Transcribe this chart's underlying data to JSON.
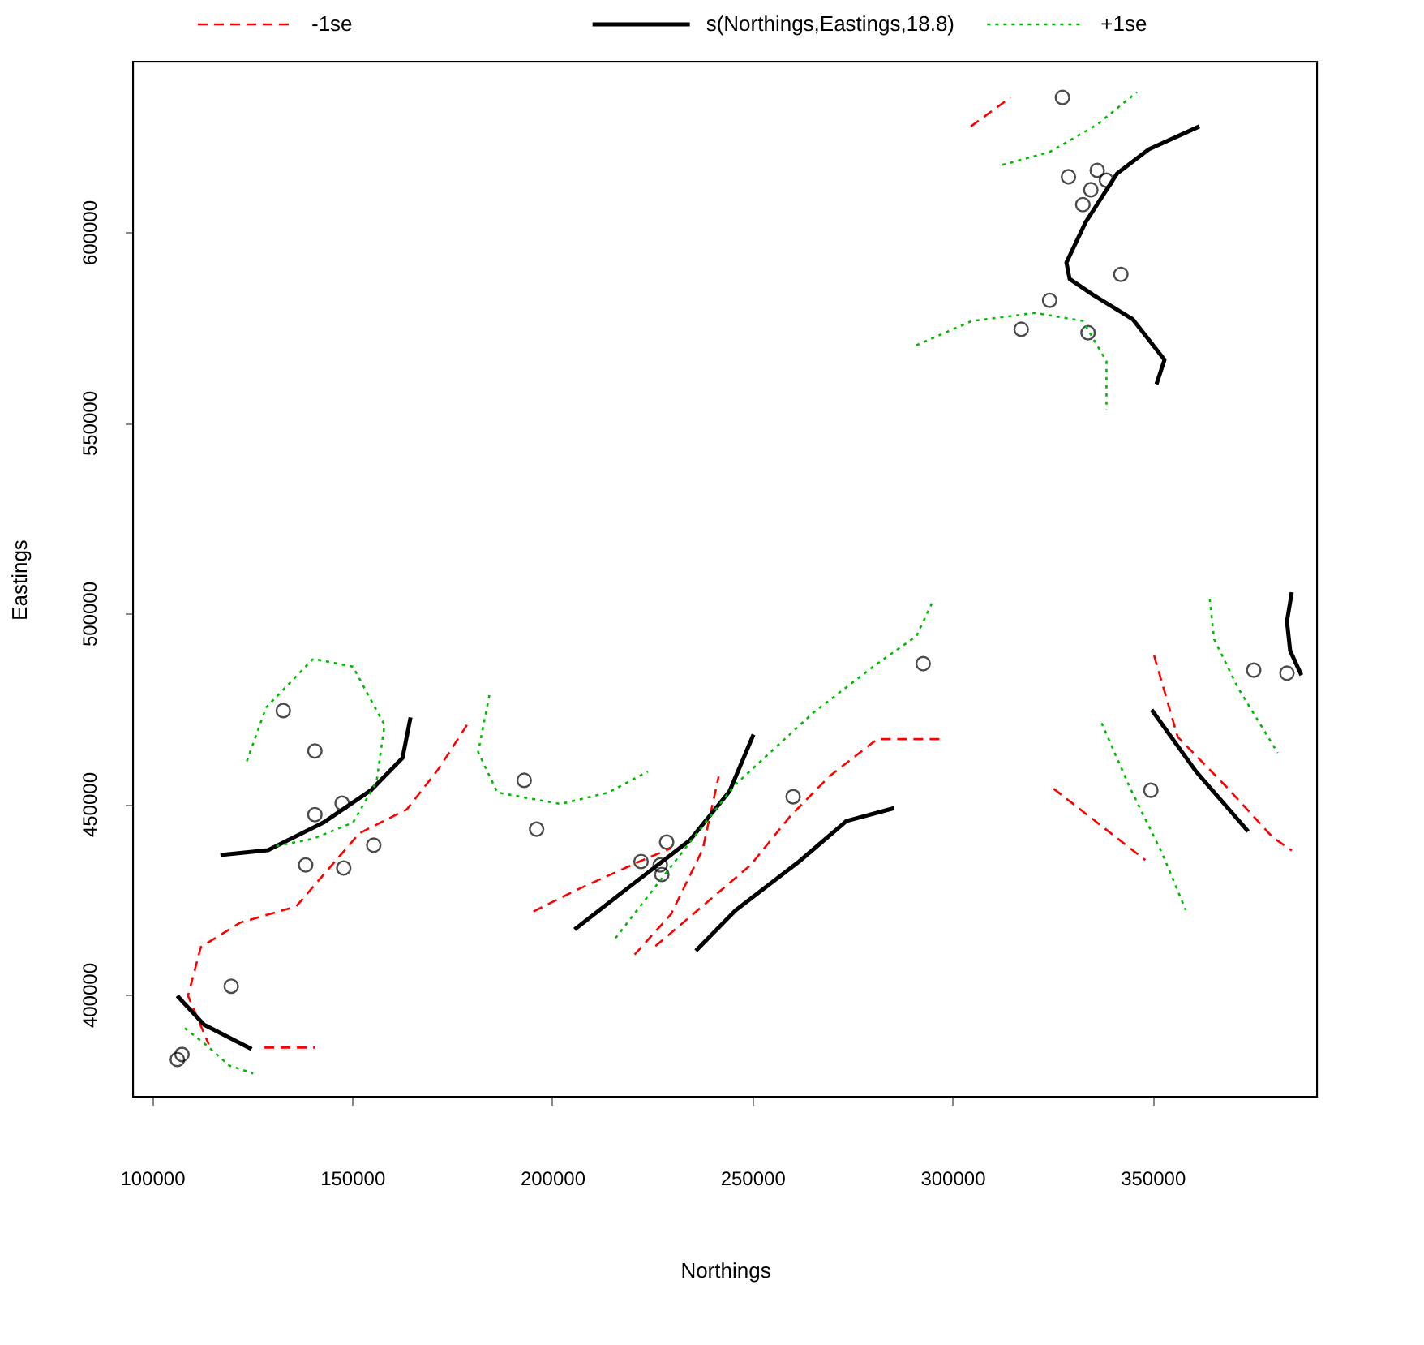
{
  "chart_data": {
    "type": "scatter",
    "xlabel": "Northings",
    "ylabel": "Eastings",
    "xlim": [
      95250,
      391100
    ],
    "ylim": [
      373200,
      644700
    ],
    "xticks": [
      100000,
      150000,
      200000,
      250000,
      300000,
      350000
    ],
    "yticks": [
      400000,
      450000,
      500000,
      550000,
      600000
    ],
    "grid": false,
    "legend": "top",
    "series": [
      {
        "color": "#000000",
        "marker": "circle",
        "x": [
          106330,
          107500,
          119800,
          132800,
          140700,
          140700,
          138400,
          147500,
          147900,
          155400,
          193000,
          196100,
          222200,
          228600,
          227000,
          227400,
          260200,
          292700,
          327500,
          329000,
          332600,
          336200,
          338500,
          334600,
          342100,
          324300,
          317200,
          333900,
          349600,
          375300,
          383600
        ],
        "values": [
          383000,
          384300,
          402200,
          474500,
          463900,
          447200,
          434000,
          450200,
          433200,
          439200,
          456200,
          443400,
          434900,
          440000,
          434000,
          431500,
          451900,
          486800,
          635300,
          614500,
          607200,
          616200,
          613600,
          611100,
          588900,
          582100,
          574500,
          573600,
          453600,
          485100,
          484300
        ]
      },
      {
        "type": "line",
        "name": "-1se",
        "color": "#ff0000",
        "line_style": "dashed",
        "x": [
          178700,
          171600,
          163700,
          151800,
          136000,
          122100,
          112200,
          109000,
          114200
        ],
        "values": [
          470700,
          459200,
          448600,
          442300,
          423100,
          418900,
          412500,
          399700,
          386900
        ]
      },
      {
        "type": "line",
        "color": "#ff0000",
        "line_style": "dashed",
        "x": [
          128100,
          140700
        ],
        "values": [
          386100,
          386100
        ]
      },
      {
        "type": "line",
        "color": "#ff0000",
        "line_style": "dashed",
        "x": [
          195300,
          206000,
          221800,
          229700
        ],
        "values": [
          421800,
          427400,
          434900,
          438400
        ]
      },
      {
        "type": "line",
        "color": "#ff0000",
        "line_style": "dashed",
        "x": [
          220600,
          229700,
          237600,
          241600
        ],
        "values": [
          410500,
          421100,
          438100,
          457200
        ]
      },
      {
        "type": "line",
        "color": "#ff0000",
        "line_style": "dashed",
        "x": [
          225800,
          249600,
          259400,
          269300,
          281200,
          297000
        ],
        "values": [
          412700,
          434000,
          446700,
          457300,
          467000,
          467000
        ]
      },
      {
        "type": "line",
        "color": "#ff0000",
        "line_style": "dashed",
        "x": [
          304600,
          314500
        ],
        "values": [
          627700,
          635300
        ]
      },
      {
        "type": "line",
        "color": "#ff0000",
        "line_style": "dashed",
        "x": [
          325300,
          348200
        ],
        "values": [
          454000,
          435300
        ]
      },
      {
        "type": "line",
        "color": "#ff0000",
        "line_style": "dashed",
        "x": [
          350400,
          356300,
          368200,
          380100,
          384800
        ],
        "values": [
          488900,
          467600,
          454800,
          441200,
          437800
        ]
      },
      {
        "type": "line",
        "name": "s(Northings,Eastings,18.8)",
        "color": "#000000",
        "line_style": "solid",
        "x": [
          106300,
          113000,
          124900
        ],
        "values": [
          399700,
          392100,
          385700
        ]
      },
      {
        "type": "line",
        "color": "#000000",
        "line_style": "solid",
        "x": [
          117100,
          129000,
          142800,
          154700,
          162600,
          164600
        ],
        "values": [
          436600,
          437900,
          445100,
          453600,
          462100,
          472700
        ]
      },
      {
        "type": "line",
        "color": "#000000",
        "line_style": "solid",
        "x": [
          205600,
          218600,
          234400,
          244300,
          250300
        ],
        "values": [
          417100,
          427700,
          440500,
          453300,
          468200
        ]
      },
      {
        "type": "line",
        "color": "#000000",
        "line_style": "solid",
        "x": [
          235900,
          245800,
          261700,
          273500,
          285400
        ],
        "values": [
          411500,
          422100,
          434900,
          445500,
          448900
        ]
      },
      {
        "type": "line",
        "color": "#000000",
        "line_style": "solid",
        "x": [
          351000,
          353000,
          345100,
          335200,
          329300,
          328500,
          333300,
          341200,
          349100,
          361700
        ],
        "values": [
          560100,
          566500,
          577100,
          583500,
          587700,
          592000,
          602600,
          615400,
          621700,
          627700
        ]
      },
      {
        "type": "line",
        "color": "#000000",
        "line_style": "solid",
        "x": [
          349800,
          360900,
          373900
        ],
        "values": [
          474700,
          458500,
          442800
        ]
      },
      {
        "type": "line",
        "color": "#000000",
        "line_style": "solid",
        "x": [
          384800,
          383600,
          384400,
          387200
        ],
        "values": [
          505500,
          497900,
          490200,
          483800
        ]
      },
      {
        "type": "line",
        "name": "+1se",
        "color": "#00bb00",
        "line_style": "dotted",
        "x": [
          108200,
          113400,
          119300,
          125300
        ],
        "values": [
          391200,
          386900,
          381400,
          379300
        ]
      },
      {
        "type": "line",
        "color": "#00bb00",
        "line_style": "dotted",
        "x": [
          123700,
          128500,
          140300,
          150200,
          158100,
          156100,
          150200,
          140300,
          130400
        ],
        "values": [
          461200,
          475300,
          488100,
          486000,
          470700,
          455800,
          445100,
          440900,
          438800
        ]
      },
      {
        "type": "line",
        "color": "#00bb00",
        "line_style": "dotted",
        "x": [
          184300,
          181500,
          186300,
          202100,
          214000,
          223900
        ],
        "values": [
          478500,
          463600,
          453000,
          450000,
          453000,
          458500
        ]
      },
      {
        "type": "line",
        "color": "#00bb00",
        "line_style": "dotted",
        "x": [
          215800,
          229700,
          245500,
          265300,
          281200,
          291000,
          295400
        ],
        "values": [
          414800,
          433600,
          454800,
          474000,
          486800,
          494000,
          503800
        ]
      },
      {
        "type": "line",
        "color": "#00bb00",
        "line_style": "dotted",
        "x": [
          291000,
          304900,
          320700,
          332600,
          338500,
          338500
        ],
        "values": [
          570300,
          576700,
          578800,
          576700,
          566100,
          553300
        ]
      },
      {
        "type": "line",
        "color": "#00bb00",
        "line_style": "dotted",
        "x": [
          312500,
          324300,
          336200,
          346100
        ],
        "values": [
          617600,
          621000,
          628200,
          636700
        ]
      },
      {
        "type": "line",
        "color": "#00bb00",
        "line_style": "dotted",
        "x": [
          337300,
          344400,
          352400,
          358300
        ],
        "values": [
          471200,
          454200,
          437100,
          422200
        ]
      },
      {
        "type": "line",
        "color": "#00bb00",
        "line_style": "dotted",
        "x": [
          364300,
          365400,
          371400,
          381300
        ],
        "values": [
          503800,
          493200,
          480400,
          463400
        ]
      }
    ]
  }
}
